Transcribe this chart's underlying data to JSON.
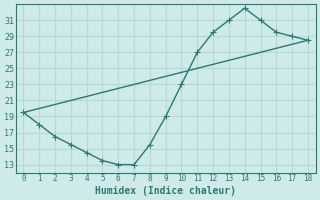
{
  "xlabel": "Humidex (Indice chaleur)",
  "bg_color": "#ceeaea",
  "line_color": "#2a7a72",
  "grid_color": "#b8d8d8",
  "xlim": [
    -0.5,
    18.5
  ],
  "ylim": [
    12,
    33
  ],
  "yticks": [
    13,
    15,
    17,
    19,
    21,
    23,
    25,
    27,
    29,
    31
  ],
  "xticks": [
    0,
    1,
    2,
    3,
    4,
    5,
    6,
    7,
    8,
    9,
    10,
    11,
    12,
    13,
    14,
    15,
    16,
    17,
    18
  ],
  "line1_x": [
    0,
    1,
    2,
    3,
    4,
    5,
    6,
    7,
    8,
    9,
    10,
    11,
    12,
    13,
    14,
    15,
    16,
    17,
    18
  ],
  "line1_y": [
    19.5,
    18.0,
    16.5,
    15.5,
    14.5,
    13.5,
    13.0,
    13.0,
    15.5,
    19.0,
    23.0,
    27.0,
    29.5,
    31.0,
    32.5,
    31.0,
    29.5,
    29.0,
    28.5
  ],
  "line2_x": [
    0,
    18
  ],
  "line2_y": [
    19.5,
    28.5
  ],
  "markersize": 3.0,
  "linewidth": 1.0
}
